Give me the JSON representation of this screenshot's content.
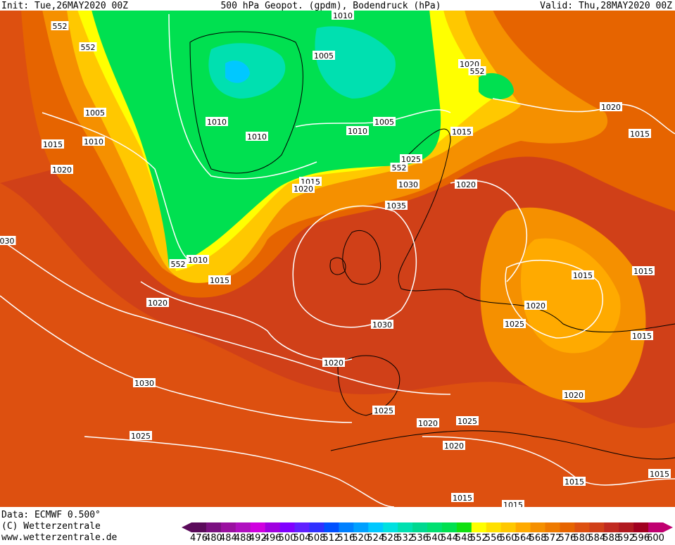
{
  "header": {
    "init": "Init: Tue,26MAY2020 00Z",
    "title": "500 hPa Geopot. (gpdm), Bodendruck (hPa)",
    "valid": "Valid: Thu,28MAY2020 00Z"
  },
  "map": {
    "contour_labels": [
      "552",
      "552",
      "1005",
      "1015",
      "1010",
      "1020",
      "030",
      "1010",
      "1010",
      "1010",
      "1005",
      "1010",
      "1005",
      "1020",
      "552",
      "1020",
      "1015",
      "1015",
      "1025",
      "552",
      "1015",
      "1020",
      "1030",
      "1020",
      "1035",
      "552",
      "1010",
      "1015",
      "1020",
      "1015",
      "1015",
      "1020",
      "1025",
      "1030",
      "1015",
      "1020",
      "1030",
      "1020",
      "1025",
      "1020",
      "1025",
      "1025",
      "1020",
      "1015",
      "1015",
      "1015",
      "1015"
    ]
  },
  "footer": {
    "data": "Data: ECMWF   0.500°",
    "copyright": "(C) Wetterzentrale",
    "url": "www.wetterzentrale.de"
  },
  "colorbar": {
    "levels": [
      476,
      480,
      484,
      488,
      492,
      496,
      500,
      504,
      508,
      512,
      516,
      520,
      524,
      528,
      532,
      536,
      540,
      544,
      548,
      552,
      556,
      560,
      564,
      568,
      572,
      576,
      580,
      584,
      588,
      592,
      596,
      600
    ],
    "colors": [
      "#5a0a5a",
      "#7a1080",
      "#9a10a0",
      "#b010c0",
      "#d000e0",
      "#a000e0",
      "#8000ff",
      "#6020ff",
      "#3030ff",
      "#0050ff",
      "#0080ff",
      "#00a0ff",
      "#00c8ff",
      "#00e0e0",
      "#00e0b0",
      "#00d890",
      "#00e070",
      "#00e050",
      "#10e010",
      "#ffff00",
      "#ffe000",
      "#ffc800",
      "#ffaa00",
      "#f59000",
      "#ee7a00",
      "#e66400",
      "#dd5010",
      "#d04018",
      "#c02a20",
      "#b01a20",
      "#a00020",
      "#c00070"
    ]
  }
}
